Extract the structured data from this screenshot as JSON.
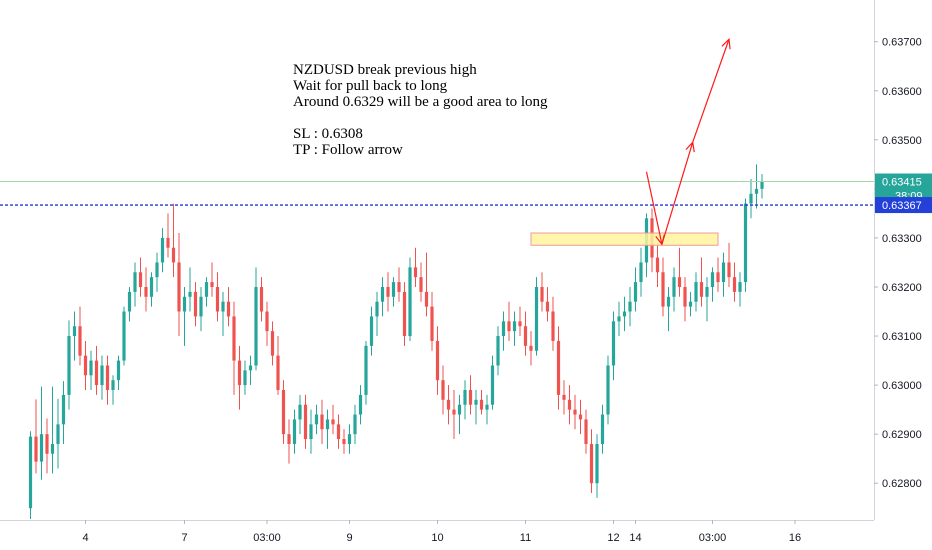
{
  "chart_data": {
    "type": "candlestick",
    "symbol": "NZDUSD",
    "y_ticks": [
      0.628,
      0.629,
      0.63,
      0.631,
      0.632,
      0.633,
      0.634,
      0.635,
      0.636,
      0.637
    ],
    "y_tick_labels": [
      "0.62800",
      "0.62900",
      "0.63000",
      "0.63100",
      "0.63200",
      "0.63300",
      "0.63400",
      "0.63500",
      "0.63600",
      "0.63700"
    ],
    "ylim": [
      0.62725,
      0.63785
    ],
    "x_ticks": [
      {
        "label": "4",
        "bar": 10
      },
      {
        "label": "7",
        "bar": 28
      },
      {
        "label": "03:00",
        "bar": 43
      },
      {
        "label": "9",
        "bar": 58
      },
      {
        "label": "10",
        "bar": 74
      },
      {
        "label": "11",
        "bar": 90
      },
      {
        "label": "12",
        "bar": 106
      },
      {
        "label": "14",
        "bar": 110
      },
      {
        "label": "03:00",
        "bar": 124
      },
      {
        "label": "16",
        "bar": 139
      }
    ],
    "bar_count": 155,
    "candles": [
      [
        0.62749,
        0.62906,
        0.62727,
        0.62895
      ],
      [
        0.62895,
        0.62971,
        0.6282,
        0.62844
      ],
      [
        0.62844,
        0.62997,
        0.62807,
        0.629
      ],
      [
        0.629,
        0.62932,
        0.6282,
        0.6286
      ],
      [
        0.6286,
        0.62997,
        0.6282,
        0.6288
      ],
      [
        0.6288,
        0.62972,
        0.6283,
        0.6292
      ],
      [
        0.6292,
        0.63008,
        0.6288,
        0.6298
      ],
      [
        0.6298,
        0.63132,
        0.6295,
        0.631
      ],
      [
        0.631,
        0.6315,
        0.6305,
        0.6312
      ],
      [
        0.6312,
        0.6316,
        0.6304,
        0.6306
      ],
      [
        0.6306,
        0.6309,
        0.6299,
        0.6302
      ],
      [
        0.6302,
        0.6307,
        0.6299,
        0.6305
      ],
      [
        0.6305,
        0.6308,
        0.6298,
        0.63
      ],
      [
        0.63,
        0.6306,
        0.6297,
        0.6304
      ],
      [
        0.6304,
        0.6306,
        0.6296,
        0.6299
      ],
      [
        0.6299,
        0.6302,
        0.6296,
        0.6301
      ],
      [
        0.6301,
        0.6306,
        0.6299,
        0.6305
      ],
      [
        0.6305,
        0.6316,
        0.6304,
        0.6315
      ],
      [
        0.6315,
        0.632,
        0.6313,
        0.6319
      ],
      [
        0.6319,
        0.6325,
        0.6316,
        0.6323
      ],
      [
        0.6323,
        0.6326,
        0.6318,
        0.632
      ],
      [
        0.632,
        0.6324,
        0.6315,
        0.6318
      ],
      [
        0.6318,
        0.6323,
        0.6316,
        0.6322
      ],
      [
        0.6322,
        0.6327,
        0.6319,
        0.6325
      ],
      [
        0.6325,
        0.6332,
        0.6323,
        0.633
      ],
      [
        0.633,
        0.6335,
        0.6326,
        0.6328
      ],
      [
        0.6328,
        0.6337,
        0.6322,
        0.6325
      ],
      [
        0.6325,
        0.6331,
        0.631,
        0.6315
      ],
      [
        0.6315,
        0.632,
        0.6308,
        0.6318
      ],
      [
        0.6318,
        0.6324,
        0.6315,
        0.6319
      ],
      [
        0.6319,
        0.6321,
        0.6312,
        0.6314
      ],
      [
        0.6314,
        0.632,
        0.6311,
        0.6318
      ],
      [
        0.6318,
        0.6322,
        0.6316,
        0.6321
      ],
      [
        0.6321,
        0.6325,
        0.6318,
        0.632
      ],
      [
        0.632,
        0.6323,
        0.6313,
        0.6315
      ],
      [
        0.6315,
        0.6319,
        0.631,
        0.6317
      ],
      [
        0.6317,
        0.632,
        0.6312,
        0.6314
      ],
      [
        0.6314,
        0.6317,
        0.6298,
        0.6305
      ],
      [
        0.6305,
        0.6308,
        0.6295,
        0.63
      ],
      [
        0.63,
        0.6305,
        0.6298,
        0.6303
      ],
      [
        0.6303,
        0.6306,
        0.63,
        0.6304
      ],
      [
        0.6304,
        0.6324,
        0.6303,
        0.632
      ],
      [
        0.632,
        0.6322,
        0.6313,
        0.6315
      ],
      [
        0.6315,
        0.6317,
        0.6308,
        0.6311
      ],
      [
        0.6311,
        0.6313,
        0.6304,
        0.6306
      ],
      [
        0.6306,
        0.631,
        0.6298,
        0.6299
      ],
      [
        0.6299,
        0.6301,
        0.6288,
        0.629
      ],
      [
        0.629,
        0.6293,
        0.6284,
        0.6288
      ],
      [
        0.6288,
        0.6295,
        0.6286,
        0.6293
      ],
      [
        0.6293,
        0.6298,
        0.629,
        0.6296
      ],
      [
        0.6296,
        0.6298,
        0.6287,
        0.6289
      ],
      [
        0.6289,
        0.6295,
        0.6286,
        0.6292
      ],
      [
        0.6292,
        0.6296,
        0.629,
        0.6294
      ],
      [
        0.6294,
        0.6297,
        0.6288,
        0.6291
      ],
      [
        0.6291,
        0.6295,
        0.6287,
        0.6293
      ],
      [
        0.6293,
        0.6296,
        0.629,
        0.6292
      ],
      [
        0.6292,
        0.6294,
        0.6287,
        0.6289
      ],
      [
        0.6289,
        0.6291,
        0.6286,
        0.6288
      ],
      [
        0.6288,
        0.6292,
        0.6286,
        0.629
      ],
      [
        0.629,
        0.6296,
        0.6288,
        0.6294
      ],
      [
        0.6294,
        0.63,
        0.6292,
        0.6298
      ],
      [
        0.6298,
        0.6309,
        0.6296,
        0.6308
      ],
      [
        0.6308,
        0.6316,
        0.6306,
        0.6314
      ],
      [
        0.6314,
        0.6319,
        0.631,
        0.6317
      ],
      [
        0.6317,
        0.6322,
        0.6314,
        0.632
      ],
      [
        0.632,
        0.6323,
        0.6315,
        0.6318
      ],
      [
        0.6318,
        0.6322,
        0.6316,
        0.6321
      ],
      [
        0.6321,
        0.6324,
        0.6317,
        0.6319
      ],
      [
        0.6319,
        0.6321,
        0.6308,
        0.631
      ],
      [
        0.631,
        0.6326,
        0.6309,
        0.6324
      ],
      [
        0.6324,
        0.6328,
        0.632,
        0.6322
      ],
      [
        0.6322,
        0.6325,
        0.6317,
        0.6319
      ],
      [
        0.6319,
        0.6327,
        0.6314,
        0.6316
      ],
      [
        0.6316,
        0.6319,
        0.6307,
        0.6309
      ],
      [
        0.6309,
        0.6312,
        0.6298,
        0.6301
      ],
      [
        0.6301,
        0.6304,
        0.6294,
        0.6297
      ],
      [
        0.6297,
        0.63,
        0.6292,
        0.6295
      ],
      [
        0.6295,
        0.6299,
        0.6289,
        0.6294
      ],
      [
        0.6294,
        0.6298,
        0.629,
        0.6296
      ],
      [
        0.6296,
        0.6301,
        0.6293,
        0.6299
      ],
      [
        0.6299,
        0.6302,
        0.6294,
        0.6296
      ],
      [
        0.6296,
        0.6299,
        0.6292,
        0.6297
      ],
      [
        0.6297,
        0.6299,
        0.6294,
        0.6295
      ],
      [
        0.6295,
        0.6298,
        0.6292,
        0.6296
      ],
      [
        0.6296,
        0.6306,
        0.6295,
        0.6304
      ],
      [
        0.6304,
        0.6312,
        0.6302,
        0.631
      ],
      [
        0.631,
        0.6315,
        0.6307,
        0.6313
      ],
      [
        0.6313,
        0.6317,
        0.6309,
        0.6311
      ],
      [
        0.6311,
        0.6315,
        0.6308,
        0.6313
      ],
      [
        0.6313,
        0.6316,
        0.631,
        0.6312
      ],
      [
        0.6312,
        0.6315,
        0.6306,
        0.6308
      ],
      [
        0.6308,
        0.6311,
        0.6304,
        0.6307
      ],
      [
        0.6307,
        0.6322,
        0.6306,
        0.632
      ],
      [
        0.632,
        0.6323,
        0.6315,
        0.6317
      ],
      [
        0.6317,
        0.632,
        0.6313,
        0.6315
      ],
      [
        0.6315,
        0.6318,
        0.6307,
        0.6309
      ],
      [
        0.6309,
        0.6312,
        0.6295,
        0.6298
      ],
      [
        0.6298,
        0.6301,
        0.6294,
        0.6297
      ],
      [
        0.6297,
        0.63,
        0.6292,
        0.6295
      ],
      [
        0.6295,
        0.6298,
        0.6291,
        0.6294
      ],
      [
        0.6294,
        0.6297,
        0.629,
        0.6293
      ],
      [
        0.6293,
        0.6295,
        0.6286,
        0.6288
      ],
      [
        0.6288,
        0.6291,
        0.6278,
        0.628
      ],
      [
        0.628,
        0.629,
        0.6277,
        0.6288
      ],
      [
        0.6288,
        0.6296,
        0.6286,
        0.6294
      ],
      [
        0.6294,
        0.6306,
        0.6292,
        0.6304
      ],
      [
        0.6304,
        0.6315,
        0.6301,
        0.6313
      ],
      [
        0.6313,
        0.6317,
        0.631,
        0.6314
      ],
      [
        0.6314,
        0.6318,
        0.6311,
        0.6315
      ],
      [
        0.6315,
        0.632,
        0.6312,
        0.6317
      ],
      [
        0.6317,
        0.6324,
        0.6315,
        0.6321
      ],
      [
        0.6321,
        0.6328,
        0.6318,
        0.6325
      ],
      [
        0.6325,
        0.6335,
        0.6322,
        0.6334
      ],
      [
        0.6334,
        0.6336,
        0.6323,
        0.6326
      ],
      [
        0.6326,
        0.6329,
        0.632,
        0.6323
      ],
      [
        0.6323,
        0.6326,
        0.6314,
        0.6316
      ],
      [
        0.6316,
        0.632,
        0.6311,
        0.6318
      ],
      [
        0.6318,
        0.6324,
        0.6315,
        0.6322
      ],
      [
        0.6322,
        0.6328,
        0.6318,
        0.632
      ],
      [
        0.632,
        0.6322,
        0.6313,
        0.6316
      ],
      [
        0.6316,
        0.6319,
        0.6314,
        0.6317
      ],
      [
        0.6317,
        0.6323,
        0.6315,
        0.6321
      ],
      [
        0.6321,
        0.6326,
        0.6316,
        0.6318
      ],
      [
        0.6318,
        0.6322,
        0.6313,
        0.632
      ],
      [
        0.632,
        0.6324,
        0.6317,
        0.6323
      ],
      [
        0.6323,
        0.6326,
        0.6319,
        0.6321
      ],
      [
        0.6321,
        0.6327,
        0.6318,
        0.6325
      ],
      [
        0.6325,
        0.6329,
        0.632,
        0.6322
      ],
      [
        0.6322,
        0.6325,
        0.6317,
        0.6319
      ],
      [
        0.6319,
        0.6323,
        0.6316,
        0.6321
      ],
      [
        0.6321,
        0.6338,
        0.6319,
        0.6337
      ],
      [
        0.6337,
        0.6342,
        0.6334,
        0.6339
      ],
      [
        0.6339,
        0.6345,
        0.6336,
        0.634
      ],
      [
        0.634,
        0.6343,
        0.6338,
        0.63415
      ]
    ],
    "colors": {
      "up": "#26a69a",
      "down": "#ef5350",
      "up_wick": "#26a69a",
      "down_wick": "#ef5350"
    },
    "horizontal_lines": [
      {
        "price": 0.63415,
        "color": "#a5d6a7",
        "style": "solid"
      },
      {
        "price": 0.63367,
        "color": "#1d3bd1",
        "style": "dashed"
      }
    ],
    "price_badges": [
      {
        "price": 0.63415,
        "text": "0.63415",
        "sub": "38:09",
        "color": "#26a69a"
      },
      {
        "price": 0.63367,
        "text": "0.63367",
        "color": "#2340d8"
      }
    ],
    "zone": {
      "bar_start": 91,
      "bar_end": 125,
      "price_top": 0.6331,
      "price_bottom": 0.63285,
      "fill": "#fff59d",
      "stroke": "#ef9a9a"
    },
    "arrow_path": [
      [
        112.0,
        0.63435
      ],
      [
        114.8,
        0.63287
      ],
      [
        120.4,
        0.63495
      ],
      [
        127.0,
        0.63705
      ]
    ],
    "arrow_color": "#ff1a1a",
    "annotation_lines": [
      "NZDUSD break previous high",
      "Wait for pull back to long",
      "Around 0.6329 will be a good area to long",
      "",
      "SL : 0.6308",
      "TP : Follow arrow"
    ]
  }
}
